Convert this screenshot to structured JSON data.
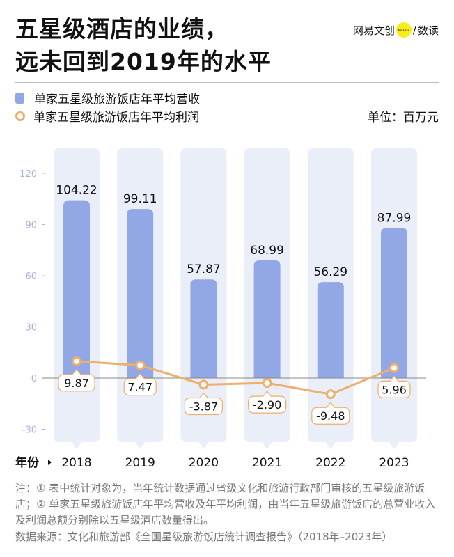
{
  "title_line1": "五星级酒店的业绩，",
  "title_line2": "远未回到2019年的水平",
  "logo": {
    "brand": "网易文创",
    "badge": "NetEase",
    "slash": "/",
    "name": "数读"
  },
  "unit": "单位：百万元",
  "note": "注：① 表中统计对象为，当年统计数据通过省级文化和旅游行政部门审核的五星级旅游饭店；② 单家五星级旅游饭店年平均营收及年平均利润，由当年五星级旅游饭店的总营业收入及利润总额分别除以五星级酒店数量得出。",
  "source": "数据来源：文化和旅游部《全国星级旅游饭店统计调查报告》（2018年–2023年）",
  "colors": {
    "bar": "#92a8e6",
    "column_bg": "#e9eef9",
    "line": "#eeae6c",
    "axis_text": "#a7b3dd"
  },
  "chart_data": {
    "type": "bar+line",
    "xlabel": "年份",
    "categories": [
      "2018",
      "2019",
      "2020",
      "2021",
      "2022",
      "2023"
    ],
    "series": [
      {
        "name": "单家五星级旅游饭店年平均营收",
        "type": "bar",
        "values": [
          104.22,
          99.11,
          57.87,
          68.99,
          56.29,
          87.99
        ],
        "labels": [
          "104.22",
          "99.11",
          "57.87",
          "68.99",
          "56.29",
          "87.99"
        ]
      },
      {
        "name": "单家五星级旅游饭店年平均利润",
        "type": "line",
        "values": [
          9.87,
          7.47,
          -3.87,
          -2.9,
          -9.48,
          5.96
        ],
        "labels": [
          "9.87",
          "7.47",
          "-3.87",
          "-2.90",
          "-9.48",
          "5.96"
        ]
      }
    ],
    "ylim": [
      -30,
      130
    ],
    "yticks": [
      -30,
      0,
      30,
      60,
      90,
      120
    ],
    "legend": "top-left",
    "grid": false
  }
}
